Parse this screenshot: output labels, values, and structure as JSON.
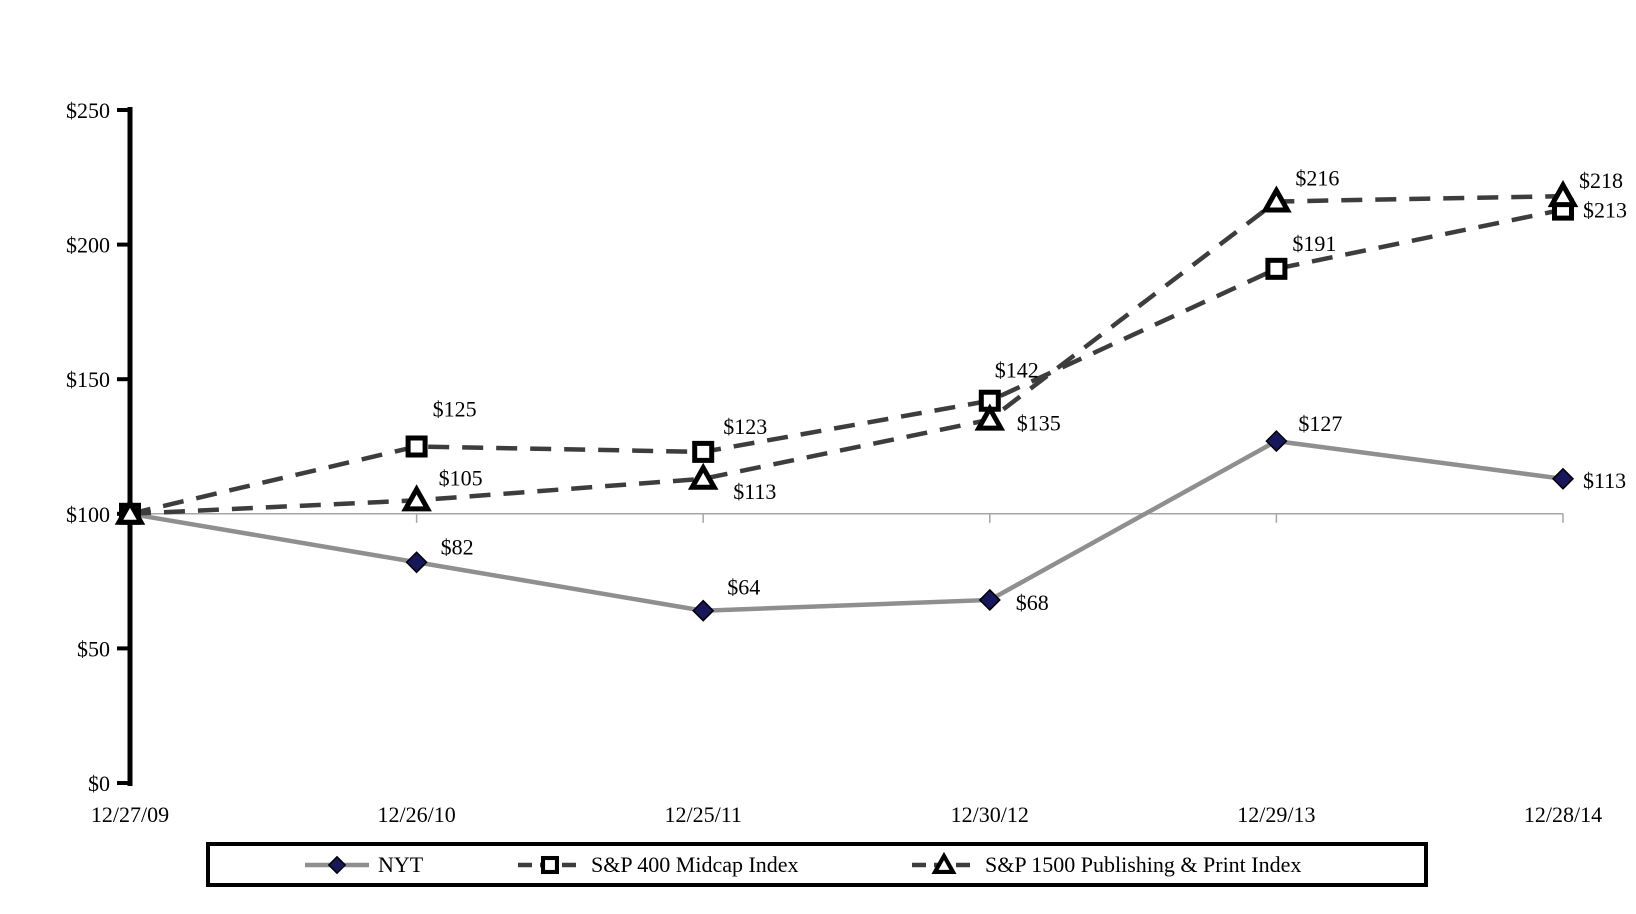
{
  "chart_data": {
    "type": "line",
    "title": "",
    "xlabel": "",
    "ylabel": "",
    "x_categories": [
      "12/27/09",
      "12/26/10",
      "12/25/11",
      "12/30/12",
      "12/29/13",
      "12/28/14"
    ],
    "y_axis": {
      "range": [
        0,
        250
      ],
      "tick_values": [
        0,
        50,
        100,
        150,
        200,
        250
      ],
      "tick_labels": [
        "$0",
        "$50",
        "$100",
        "$150",
        "$200",
        "$250"
      ],
      "baseline_value": 100
    },
    "grid": "single horizontal gridline at $100 with category tick stubs",
    "legend_position": "bottom-boxed",
    "series": [
      {
        "name": "NYT",
        "values": [
          100,
          82,
          64,
          68,
          127,
          113
        ],
        "line_style": "solid",
        "line_color": "#8F8F8F",
        "marker": "diamond",
        "marker_fill": "#17175B",
        "marker_stroke": "#000000",
        "point_labels": [
          null,
          "$82",
          "$64",
          "$68",
          "$127",
          "$113"
        ]
      },
      {
        "name": "S&P 400 Midcap Index",
        "values": [
          100,
          125,
          123,
          142,
          191,
          213
        ],
        "line_style": "dashed",
        "line_color": "#3D3D3D",
        "marker": "square",
        "marker_fill": "#FFFFFF",
        "marker_stroke": "#000000",
        "point_labels": [
          null,
          "$125",
          "$123",
          "$142",
          "$191",
          "$213"
        ]
      },
      {
        "name": "S&P 1500 Publishing & Print Index",
        "values": [
          100,
          105,
          113,
          135,
          216,
          218
        ],
        "line_style": "dashed",
        "line_color": "#3D3D3D",
        "marker": "triangle",
        "marker_fill": "#FFFFFF",
        "marker_stroke": "#000000",
        "point_labels": [
          null,
          "$105",
          "$113",
          "$135",
          "$216",
          "$218"
        ]
      }
    ],
    "label_offsets": [
      [
        null,
        [
          24,
          -8
        ],
        [
          24,
          -16
        ],
        [
          26,
          10
        ],
        [
          22,
          -10
        ],
        [
          20,
          9
        ]
      ],
      [
        null,
        [
          16,
          -30
        ],
        [
          20,
          -18
        ],
        [
          5,
          -23
        ],
        [
          16,
          -18
        ],
        [
          20,
          8
        ]
      ],
      [
        null,
        [
          22,
          -15
        ],
        [
          30,
          20
        ],
        [
          27,
          11
        ],
        [
          19,
          -16
        ],
        [
          16,
          -8
        ]
      ]
    ],
    "colors": {
      "axis": "#000000",
      "baseline_gridline": "#A6A6A6",
      "label_text": "#000000",
      "legend_border": "#000000",
      "background": "#FFFFFF"
    }
  }
}
